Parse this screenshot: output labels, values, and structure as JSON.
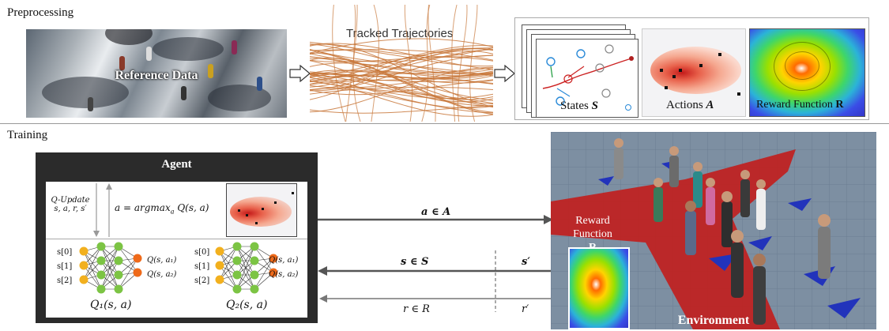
{
  "preprocessing": {
    "section_label": "Preprocessing",
    "reference_label": "Reference Data",
    "trajectories_label": "Tracked Trajectories",
    "states_label": "States",
    "states_symbol": "S",
    "actions_label": "Actions",
    "actions_symbol": "A",
    "reward_label": "Reward Function",
    "reward_symbol": "R"
  },
  "training": {
    "section_label": "Training",
    "agent_title": "Agent",
    "q_update_line1": "Q-Update",
    "q_update_line2": "s, a, r, s′",
    "policy_formula": "a = argmax",
    "policy_sub": "a",
    "policy_rest": " Q(s, a)",
    "network1": {
      "inputs": [
        "s[0]",
        "s[1]",
        "s[2]"
      ],
      "outputs": [
        "Q(s, a₁)",
        "Q(s, a₂)"
      ],
      "label": "Q₁(s, a)"
    },
    "network2": {
      "inputs": [
        "s[0]",
        "s[1]",
        "s[2]"
      ],
      "outputs": [
        "Q(s, a₁)",
        "Q(s, a₂)"
      ],
      "label": "Q₂(s, a)"
    },
    "action_arrow_label": "a ∈ A",
    "state_arrow_label": "s ∈ S",
    "state_prime": "s′",
    "reward_arrow_label": "r ∈ R",
    "reward_prime": "r′",
    "env_reward_line1": "Reward",
    "env_reward_line2": "Function",
    "env_reward_symbol": "R",
    "environment_label": "Environment"
  },
  "colors": {
    "trajectory": "#c8773a",
    "input_node": "#f2b01e",
    "hidden_node": "#7cc444",
    "output_node": "#ef6a1a",
    "agent_bg": "#2b2b2b",
    "crowd_floor": "#7d8fa2",
    "red_region": "#c0201e",
    "arrow_gray": "#555555"
  }
}
